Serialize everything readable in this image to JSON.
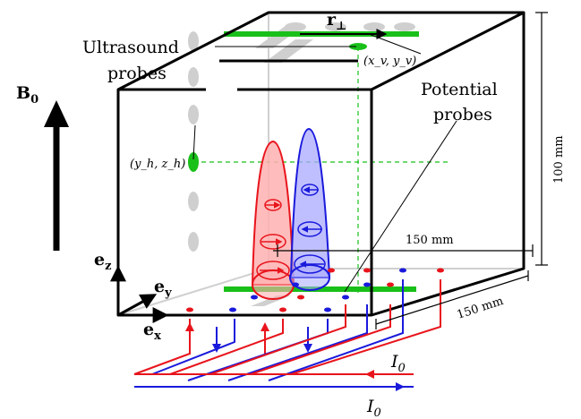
{
  "labels": {
    "ultrasound_line1": "Ultrasound",
    "ultrasound_line2": "probes",
    "potential_line1": "Potential",
    "potential_line2": "probes",
    "r_perp": "r",
    "r_perp_sub": "⊥",
    "xv_yv": "(x_v, y_v)",
    "yh_zh": "(y_h, z_h)",
    "B0": "B",
    "B0_sub": "0",
    "ez": "e",
    "ez_sub": "z",
    "ey": "e",
    "ey_sub": "y",
    "ex": "e",
    "ex_sub": "x",
    "I0_top": "I",
    "I0_top_sub": "0",
    "I0_bottom": "I",
    "I0_bottom_sub": "0"
  },
  "dimensions": {
    "height": "100 mm",
    "width_top": "150 mm",
    "depth": "150 mm"
  },
  "colors": {
    "red": "#e8141c",
    "blue": "#1a1adc",
    "green": "#19c019",
    "gray": "#c8c8c8",
    "black": "#000000"
  }
}
